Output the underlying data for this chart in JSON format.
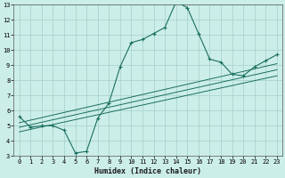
{
  "xlabel": "Humidex (Indice chaleur)",
  "background_color": "#cceee8",
  "grid_color": "#aad4ce",
  "line_color": "#1a6e60",
  "xlim": [
    -0.5,
    23.5
  ],
  "ylim": [
    3,
    13
  ],
  "xticks": [
    0,
    1,
    2,
    3,
    4,
    5,
    6,
    7,
    8,
    9,
    10,
    11,
    12,
    13,
    14,
    15,
    16,
    17,
    18,
    19,
    20,
    21,
    22,
    23
  ],
  "yticks": [
    3,
    4,
    5,
    6,
    7,
    8,
    9,
    10,
    11,
    12,
    13
  ],
  "series": [
    [
      0,
      5.6
    ],
    [
      1,
      4.9
    ],
    [
      2,
      5.0
    ],
    [
      3,
      5.0
    ],
    [
      4,
      4.7
    ],
    [
      5,
      3.2
    ],
    [
      6,
      3.3
    ],
    [
      7,
      5.5
    ],
    [
      8,
      6.5
    ],
    [
      9,
      8.9
    ],
    [
      10,
      10.5
    ],
    [
      11,
      10.7
    ],
    [
      12,
      11.1
    ],
    [
      13,
      11.5
    ],
    [
      14,
      13.2
    ],
    [
      15,
      12.8
    ],
    [
      16,
      11.1
    ],
    [
      17,
      9.4
    ],
    [
      18,
      9.2
    ],
    [
      19,
      8.4
    ],
    [
      20,
      8.3
    ],
    [
      21,
      8.9
    ],
    [
      22,
      9.3
    ],
    [
      23,
      9.7
    ]
  ],
  "linear_series_1": [
    [
      0,
      5.2
    ],
    [
      23,
      9.1
    ]
  ],
  "linear_series_2": [
    [
      0,
      4.9
    ],
    [
      23,
      8.7
    ]
  ],
  "linear_series_3": [
    [
      0,
      4.6
    ],
    [
      23,
      8.3
    ]
  ],
  "tick_fontsize": 5.0,
  "xlabel_fontsize": 6.0
}
